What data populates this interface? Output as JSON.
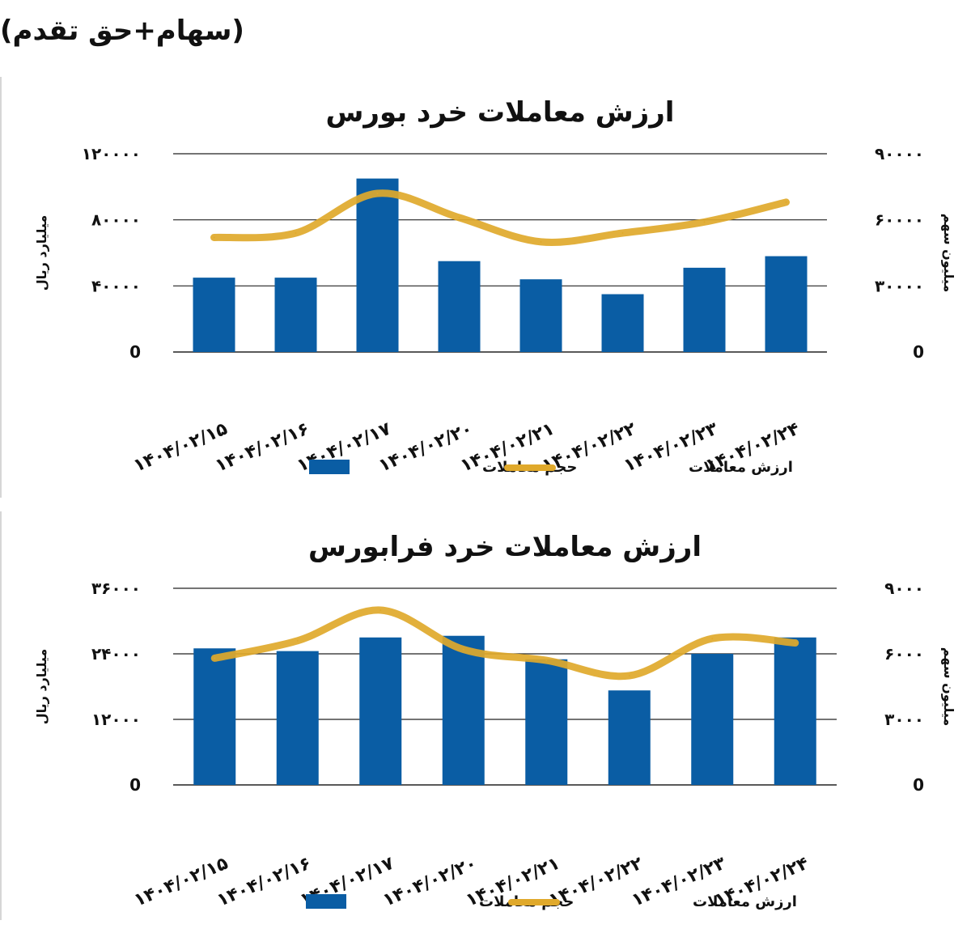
{
  "header": {
    "text": "(سهام+حق تقدم)"
  },
  "colors": {
    "bar": "#0a5da4",
    "line": "#e0a92b",
    "grid": "#222222"
  },
  "chart_data": [
    {
      "type": "bar",
      "title": "ارزش معاملات خرد بورس",
      "categories": [
        "۱۴۰۴/۰۲/۱۵",
        "۱۴۰۴/۰۲/۱۶",
        "۱۴۰۴/۰۲/۱۷",
        "۱۴۰۴/۰۲/۲۰",
        "۱۴۰۴/۰۲/۲۱",
        "۱۴۰۴/۰۲/۲۲",
        "۱۴۰۴/۰۲/۲۳",
        "۱۴۰۴/۰۲/۲۴"
      ],
      "ylabel": "میلیارد ریال",
      "y2label": "میلیون سهم",
      "ylim": [
        0,
        120000
      ],
      "yticks": [
        0,
        40000,
        80000,
        120000
      ],
      "yticks_labels": [
        "0",
        "۴۰۰۰۰",
        "۸۰۰۰۰",
        "۱۲۰۰۰۰"
      ],
      "y2lim": [
        0,
        90000
      ],
      "y2ticks": [
        0,
        30000,
        60000,
        90000
      ],
      "y2ticks_labels": [
        "0",
        "۳۰۰۰۰",
        "۶۰۰۰۰",
        "۹۰۰۰۰"
      ],
      "series": [
        {
          "name": "حجم معاملات",
          "type": "bar",
          "axis": "left",
          "values": [
            45000,
            45000,
            105000,
            55000,
            44000,
            35000,
            51000,
            58000
          ]
        },
        {
          "name": "ارزش معاملات",
          "type": "line",
          "axis": "right",
          "values": [
            52000,
            54000,
            72000,
            61000,
            50000,
            54000,
            59000,
            68000
          ]
        }
      ],
      "legend": "bottom",
      "grid": true
    },
    {
      "type": "bar",
      "title": "ارزش معاملات خرد فرابورس",
      "categories": [
        "۱۴۰۴/۰۲/۱۵",
        "۱۴۰۴/۰۲/۱۶",
        "۱۴۰۴/۰۲/۱۷",
        "۱۴۰۴/۰۲/۲۰",
        "۱۴۰۴/۰۲/۲۱",
        "۱۴۰۴/۰۲/۲۲",
        "۱۴۰۴/۰۲/۲۳",
        "۱۴۰۴/۰۲/۲۴"
      ],
      "ylabel": "میلیارد ریال",
      "y2label": "میلیون سهم",
      "ylim": [
        0,
        36000
      ],
      "yticks": [
        0,
        12000,
        24000,
        36000
      ],
      "yticks_labels": [
        "0",
        "۱۲۰۰۰",
        "۲۴۰۰۰",
        "۳۶۰۰۰"
      ],
      "y2lim": [
        0,
        9000
      ],
      "y2ticks": [
        0,
        3000,
        6000,
        9000
      ],
      "y2ticks_labels": [
        "0",
        "۳۰۰۰",
        "۶۰۰۰",
        "۹۰۰۰"
      ],
      "series": [
        {
          "name": "حجم معاملات",
          "type": "bar",
          "axis": "left",
          "values": [
            25000,
            24500,
            27000,
            27300,
            23000,
            17300,
            24000,
            27000
          ]
        },
        {
          "name": "ارزش معاملات",
          "type": "line",
          "axis": "right",
          "values": [
            5800,
            6600,
            8000,
            6200,
            5700,
            5000,
            6700,
            6500
          ]
        }
      ],
      "legend": "bottom",
      "grid": true
    }
  ]
}
